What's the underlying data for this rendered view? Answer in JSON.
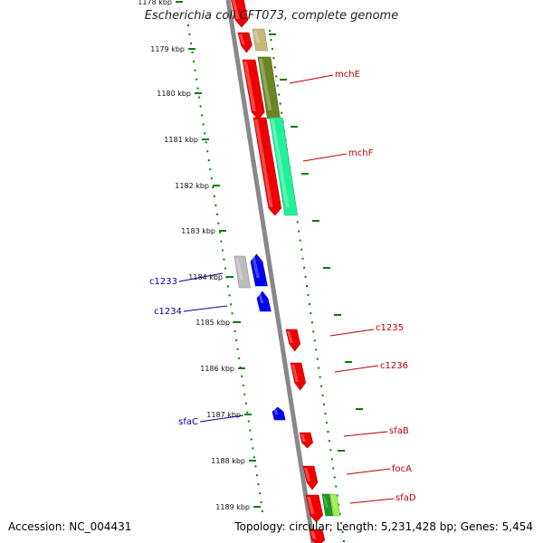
{
  "title": "Escherichia coli CFT073, complete genome",
  "footer": {
    "accession": "Accession: NC_004431",
    "summary": "Topology: circular; Length: 5,231,428 bp; Genes: 5,454"
  },
  "kbp_labels": [
    "1178 kbp",
    "1179 kbp",
    "1180 kbp",
    "1181 kbp",
    "1182 kbp",
    "1183 kbp",
    "1184 kbp",
    "1185 kbp",
    "1186 kbp",
    "1187 kbp",
    "1188 kbp",
    "1189 kbp"
  ],
  "genes_left": [
    "c1233",
    "c1234",
    "sfaC"
  ],
  "genes_right": [
    "mchE",
    "mchF",
    "c1235",
    "c1236",
    "sfaB",
    "focA",
    "sfaD"
  ],
  "colors": {
    "forward_gene": "#ee0000",
    "reverse_gene": "#0000ee",
    "backbone": "#888888",
    "ruler": "#008000",
    "left_label": "#00009a",
    "right_label": "#bb0000"
  }
}
